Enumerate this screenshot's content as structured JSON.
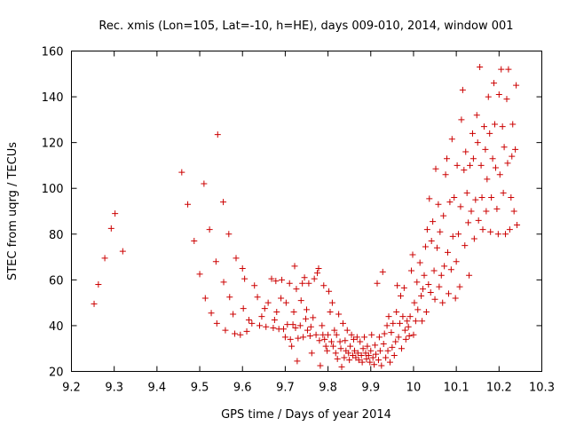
{
  "chart_data": {
    "type": "scatter",
    "title": "Rec. xmis (Lon=105, Lat=-10, h=HE), days 009-010, 2014, window 001",
    "xlabel": "GPS time / Days of year 2014",
    "ylabel": "STEC from uqrg / TECUs",
    "xlim": [
      9.2,
      10.3
    ],
    "ylim": [
      20,
      160
    ],
    "xticks": [
      "9.2",
      "9.3",
      "9.4",
      "9.5",
      "9.6",
      "9.7",
      "9.8",
      "9.9",
      "10",
      "10.1",
      "10.2",
      "10.3"
    ],
    "yticks": [
      "20",
      "40",
      "60",
      "80",
      "100",
      "120",
      "140",
      "160"
    ],
    "grid": false,
    "marker": "+",
    "marker_color": "#cc0000",
    "series": [
      {
        "name": "STEC",
        "points": [
          [
            9.253,
            49.5
          ],
          [
            9.263,
            58
          ],
          [
            9.278,
            69.5
          ],
          [
            9.293,
            82.5
          ],
          [
            9.302,
            89
          ],
          [
            9.32,
            72.5
          ],
          [
            9.458,
            107
          ],
          [
            9.472,
            93
          ],
          [
            9.487,
            77
          ],
          [
            9.5,
            62.5
          ],
          [
            9.51,
            102
          ],
          [
            9.513,
            52
          ],
          [
            9.523,
            82
          ],
          [
            9.527,
            45.5
          ],
          [
            9.538,
            68
          ],
          [
            9.54,
            41
          ],
          [
            9.542,
            123.5
          ],
          [
            9.555,
            94
          ],
          [
            9.556,
            59
          ],
          [
            9.56,
            38
          ],
          [
            9.568,
            80
          ],
          [
            9.57,
            52.5
          ],
          [
            9.578,
            45
          ],
          [
            9.582,
            36.5
          ],
          [
            9.585,
            69.5
          ],
          [
            9.595,
            36
          ],
          [
            9.6,
            65
          ],
          [
            9.602,
            47.5
          ],
          [
            9.605,
            60.5
          ],
          [
            9.61,
            37.5
          ],
          [
            9.615,
            42.5
          ],
          [
            9.622,
            41
          ],
          [
            9.628,
            57.5
          ],
          [
            9.635,
            52.5
          ],
          [
            9.64,
            40
          ],
          [
            9.645,
            44
          ],
          [
            9.652,
            47.5
          ],
          [
            9.655,
            39.5
          ],
          [
            9.66,
            50
          ],
          [
            9.668,
            60.5
          ],
          [
            9.672,
            39
          ],
          [
            9.675,
            42.5
          ],
          [
            9.678,
            59.5
          ],
          [
            9.68,
            46
          ],
          [
            9.685,
            38.5
          ],
          [
            9.69,
            52
          ],
          [
            9.692,
            60
          ],
          [
            9.696,
            38.5
          ],
          [
            9.7,
            35
          ],
          [
            9.702,
            50
          ],
          [
            9.705,
            40.5
          ],
          [
            9.71,
            58.5
          ],
          [
            9.712,
            34
          ],
          [
            9.715,
            31
          ],
          [
            9.718,
            40.5
          ],
          [
            9.72,
            46
          ],
          [
            9.722,
            66
          ],
          [
            9.724,
            39
          ],
          [
            9.726,
            56
          ],
          [
            9.728,
            24.5
          ],
          [
            9.73,
            34.5
          ],
          [
            9.735,
            40
          ],
          [
            9.737,
            51
          ],
          [
            9.74,
            58.5
          ],
          [
            9.742,
            35
          ],
          [
            9.745,
            61
          ],
          [
            9.748,
            43
          ],
          [
            9.75,
            47
          ],
          [
            9.752,
            38
          ],
          [
            9.755,
            58.5
          ],
          [
            9.758,
            35.5
          ],
          [
            9.76,
            39.5
          ],
          [
            9.762,
            28
          ],
          [
            9.765,
            43.5
          ],
          [
            9.768,
            60.5
          ],
          [
            9.772,
            36
          ],
          [
            9.775,
            63
          ],
          [
            9.778,
            65
          ],
          [
            9.78,
            33.5
          ],
          [
            9.782,
            22.5
          ],
          [
            9.786,
            40
          ],
          [
            9.788,
            36
          ],
          [
            9.79,
            57.5
          ],
          [
            9.792,
            34
          ],
          [
            9.795,
            31
          ],
          [
            9.798,
            29
          ],
          [
            9.8,
            36
          ],
          [
            9.802,
            55
          ],
          [
            9.805,
            46
          ],
          [
            9.808,
            33
          ],
          [
            9.81,
            50
          ],
          [
            9.812,
            31
          ],
          [
            9.815,
            38
          ],
          [
            9.818,
            28
          ],
          [
            9.82,
            36
          ],
          [
            9.822,
            25.5
          ],
          [
            9.825,
            45
          ],
          [
            9.828,
            33
          ],
          [
            9.83,
            30
          ],
          [
            9.832,
            22
          ],
          [
            9.835,
            41
          ],
          [
            9.838,
            26
          ],
          [
            9.84,
            33.5
          ],
          [
            9.842,
            29
          ],
          [
            9.845,
            38
          ],
          [
            9.848,
            28
          ],
          [
            9.85,
            25
          ],
          [
            9.852,
            31
          ],
          [
            9.855,
            36
          ],
          [
            9.858,
            27
          ],
          [
            9.86,
            34
          ],
          [
            9.862,
            29
          ],
          [
            9.865,
            26
          ],
          [
            9.868,
            35
          ],
          [
            9.87,
            28
          ],
          [
            9.872,
            25
          ],
          [
            9.875,
            33
          ],
          [
            9.878,
            27
          ],
          [
            9.88,
            24
          ],
          [
            9.882,
            30
          ],
          [
            9.885,
            35
          ],
          [
            9.888,
            28
          ],
          [
            9.89,
            25.5
          ],
          [
            9.892,
            31
          ],
          [
            9.895,
            27
          ],
          [
            9.898,
            24
          ],
          [
            9.9,
            29
          ],
          [
            9.902,
            36
          ],
          [
            9.905,
            26
          ],
          [
            9.908,
            23
          ],
          [
            9.91,
            31.5
          ],
          [
            9.912,
            27.5
          ],
          [
            9.915,
            58.5
          ],
          [
            9.918,
            25
          ],
          [
            9.92,
            35
          ],
          [
            9.922,
            29
          ],
          [
            9.925,
            22.5
          ],
          [
            9.928,
            63.5
          ],
          [
            9.93,
            32
          ],
          [
            9.932,
            36.5
          ],
          [
            9.935,
            26
          ],
          [
            9.938,
            40
          ],
          [
            9.94,
            29
          ],
          [
            9.942,
            44
          ],
          [
            9.945,
            24
          ],
          [
            9.948,
            37
          ],
          [
            9.95,
            30.5
          ],
          [
            9.952,
            41
          ],
          [
            9.955,
            27
          ],
          [
            9.958,
            33
          ],
          [
            9.96,
            46
          ],
          [
            9.962,
            57.5
          ],
          [
            9.965,
            35
          ],
          [
            9.968,
            41
          ],
          [
            9.97,
            53
          ],
          [
            9.972,
            30
          ],
          [
            9.975,
            44
          ],
          [
            9.978,
            56.5
          ],
          [
            9.98,
            38
          ],
          [
            9.982,
            34
          ],
          [
            9.985,
            42
          ],
          [
            9.988,
            39.5
          ],
          [
            9.99,
            35.5
          ],
          [
            9.992,
            44
          ],
          [
            9.995,
            64
          ],
          [
            9.998,
            71
          ],
          [
            10.0,
            36
          ],
          [
            10.002,
            50
          ],
          [
            10.005,
            42
          ],
          [
            10.008,
            59
          ],
          [
            10.01,
            47
          ],
          [
            10.015,
            67.5
          ],
          [
            10.018,
            53
          ],
          [
            10.02,
            42
          ],
          [
            10.022,
            56
          ],
          [
            10.025,
            62
          ],
          [
            10.028,
            74.5
          ],
          [
            10.03,
            46
          ],
          [
            10.032,
            82
          ],
          [
            10.035,
            58
          ],
          [
            10.037,
            95.5
          ],
          [
            10.04,
            54.5
          ],
          [
            10.042,
            77
          ],
          [
            10.045,
            85.5
          ],
          [
            10.048,
            64
          ],
          [
            10.05,
            51.5
          ],
          [
            10.052,
            108.5
          ],
          [
            10.055,
            74
          ],
          [
            10.058,
            93
          ],
          [
            10.06,
            57
          ],
          [
            10.062,
            81
          ],
          [
            10.065,
            62
          ],
          [
            10.068,
            50
          ],
          [
            10.07,
            88
          ],
          [
            10.072,
            66
          ],
          [
            10.075,
            106
          ],
          [
            10.078,
            113
          ],
          [
            10.08,
            72
          ],
          [
            10.082,
            54
          ],
          [
            10.085,
            94
          ],
          [
            10.088,
            64.5
          ],
          [
            10.09,
            121.5
          ],
          [
            10.092,
            79
          ],
          [
            10.095,
            96
          ],
          [
            10.098,
            52
          ],
          [
            10.1,
            68
          ],
          [
            10.102,
            110
          ],
          [
            10.105,
            80
          ],
          [
            10.108,
            57
          ],
          [
            10.11,
            92
          ],
          [
            10.112,
            130
          ],
          [
            10.115,
            143
          ],
          [
            10.118,
            108
          ],
          [
            10.12,
            75
          ],
          [
            10.122,
            116
          ],
          [
            10.125,
            98
          ],
          [
            10.128,
            85
          ],
          [
            10.13,
            62
          ],
          [
            10.132,
            110
          ],
          [
            10.135,
            90
          ],
          [
            10.138,
            124
          ],
          [
            10.14,
            113
          ],
          [
            10.142,
            78
          ],
          [
            10.145,
            95
          ],
          [
            10.148,
            132
          ],
          [
            10.15,
            120
          ],
          [
            10.152,
            86
          ],
          [
            10.155,
            153
          ],
          [
            10.158,
            110
          ],
          [
            10.16,
            96
          ],
          [
            10.162,
            82
          ],
          [
            10.165,
            127
          ],
          [
            10.168,
            117
          ],
          [
            10.17,
            90
          ],
          [
            10.172,
            104
          ],
          [
            10.175,
            140
          ],
          [
            10.178,
            124
          ],
          [
            10.18,
            81
          ],
          [
            10.182,
            96
          ],
          [
            10.185,
            113
          ],
          [
            10.188,
            146
          ],
          [
            10.19,
            128
          ],
          [
            10.192,
            109
          ],
          [
            10.195,
            91
          ],
          [
            10.198,
            80
          ],
          [
            10.2,
            141
          ],
          [
            10.202,
            106
          ],
          [
            10.205,
            152
          ],
          [
            10.208,
            127
          ],
          [
            10.21,
            98
          ],
          [
            10.212,
            118
          ],
          [
            10.215,
            80
          ],
          [
            10.218,
            139
          ],
          [
            10.22,
            111
          ],
          [
            10.222,
            152
          ],
          [
            10.225,
            82
          ],
          [
            10.228,
            96
          ],
          [
            10.23,
            114
          ],
          [
            10.232,
            128
          ],
          [
            10.235,
            90
          ],
          [
            10.238,
            117
          ],
          [
            10.24,
            145
          ],
          [
            10.242,
            84
          ]
        ]
      }
    ]
  }
}
